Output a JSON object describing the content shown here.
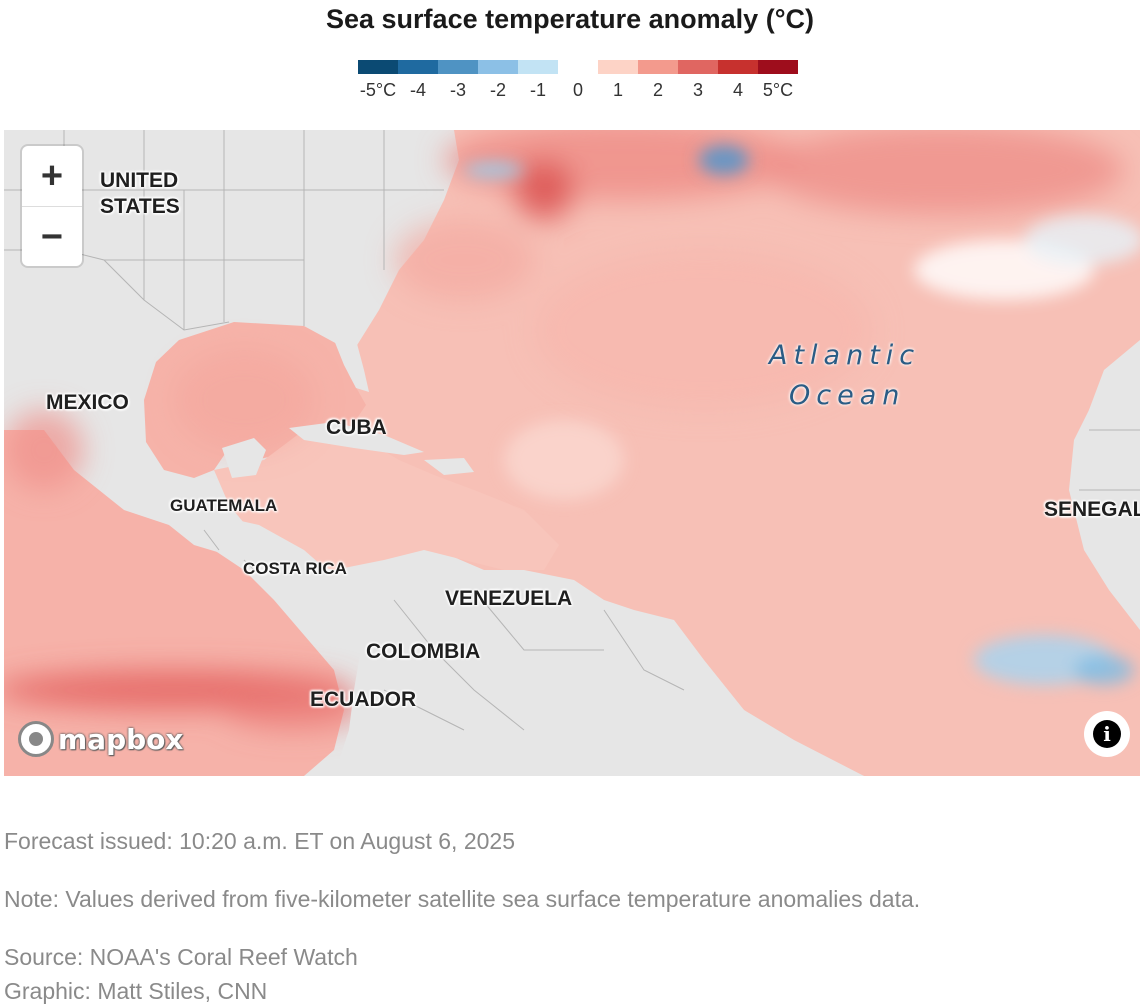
{
  "title": "Sea surface temperature anomaly (°C)",
  "legend": {
    "colors": [
      "#0b4a73",
      "#1f6aa0",
      "#4f93c3",
      "#8cc0e6",
      "#c2e3f4",
      "#ffffff",
      "#fdd3c6",
      "#f39a8d",
      "#e06661",
      "#c7312e",
      "#9e0d1c"
    ],
    "labels": [
      "-5°C",
      "-4",
      "-3",
      "-2",
      "-1",
      "0",
      "1",
      "2",
      "3",
      "4",
      "5°C"
    ]
  },
  "map": {
    "labels": {
      "united_states": "UNITED\nSTATES",
      "mexico": "MEXICO",
      "cuba": "CUBA",
      "guatemala": "GUATEMALA",
      "costa_rica": "COSTA RICA",
      "venezuela": "VENEZUELA",
      "colombia": "COLOMBIA",
      "ecuador": "ECUADOR",
      "senegal": "SENEGAL",
      "ocean_line1": "Atlantic",
      "ocean_line2": "Ocean"
    },
    "zoom_in": "+",
    "zoom_out": "−",
    "attribution_logo": "mapbox",
    "info": "i",
    "colors": {
      "land": "#e6e6e6",
      "ocean_base": "#f7c0b6",
      "warm_strong": "#e66a66",
      "cool": "#a9d4ee"
    }
  },
  "notes": {
    "forecast": "Forecast issued: 10:20 a.m. ET on August 6, 2025",
    "note": "Note: Values derived from five-kilometer satellite sea surface temperature anomalies data.",
    "source": "Source: NOAA's Coral Reef Watch",
    "graphic": "Graphic: Matt Stiles, CNN"
  }
}
